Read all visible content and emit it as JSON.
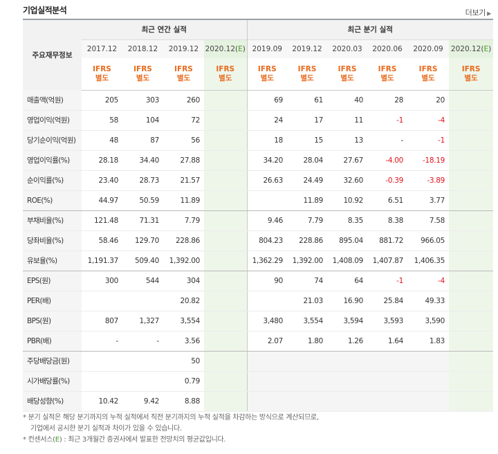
{
  "section_title": "기업실적분석",
  "more_label": "더보기",
  "header": {
    "row_label": "주요재무정보",
    "annual_group": "최근 연간 실적",
    "quarter_group": "최근 분기 실적",
    "annual_periods": [
      "2017.12",
      "2018.12",
      "2019.12",
      "2020.12(E)"
    ],
    "quarter_periods": [
      "2019.09",
      "2019.12",
      "2020.03",
      "2020.06",
      "2020.09",
      "2020.12(E)"
    ],
    "ifrs_top": "IFRS",
    "ifrs_bottom": "별도"
  },
  "rows": [
    {
      "label": "매출액(억원)",
      "annual": [
        "205",
        "303",
        "260",
        ""
      ],
      "quarter": [
        "69",
        "61",
        "40",
        "28",
        "20",
        ""
      ]
    },
    {
      "label": "영업이익(억원)",
      "annual": [
        "58",
        "104",
        "72",
        ""
      ],
      "quarter": [
        "24",
        "17",
        "11",
        "-1",
        "-4",
        ""
      ]
    },
    {
      "label": "당기순이익(억원)",
      "annual": [
        "48",
        "87",
        "56",
        ""
      ],
      "quarter": [
        "18",
        "15",
        "13",
        "-",
        "-1",
        ""
      ]
    },
    {
      "label": "영업이익률(%)",
      "annual": [
        "28.18",
        "34.40",
        "27.88",
        ""
      ],
      "quarter": [
        "34.20",
        "28.04",
        "27.67",
        "-4.00",
        "-18.19",
        ""
      ]
    },
    {
      "label": "순이익률(%)",
      "annual": [
        "23.40",
        "28.73",
        "21.57",
        ""
      ],
      "quarter": [
        "26.63",
        "24.49",
        "32.60",
        "-0.39",
        "-3.89",
        ""
      ]
    },
    {
      "label": "ROE(%)",
      "annual": [
        "44.97",
        "50.59",
        "11.89",
        ""
      ],
      "quarter": [
        "",
        "11.89",
        "10.92",
        "6.51",
        "3.77",
        ""
      ]
    },
    {
      "label": "부채비율(%)",
      "annual": [
        "121.48",
        "71.31",
        "7.79",
        ""
      ],
      "quarter": [
        "9.46",
        "7.79",
        "8.35",
        "8.38",
        "7.58",
        ""
      ]
    },
    {
      "label": "당좌비율(%)",
      "annual": [
        "58.46",
        "129.70",
        "228.86",
        ""
      ],
      "quarter": [
        "804.23",
        "228.86",
        "895.04",
        "881.72",
        "966.05",
        ""
      ]
    },
    {
      "label": "유보율(%)",
      "annual": [
        "1,191.37",
        "509.40",
        "1,392.00",
        ""
      ],
      "quarter": [
        "1,362.29",
        "1,392.00",
        "1,408.09",
        "1,407.87",
        "1,406.35",
        ""
      ]
    },
    {
      "label": "EPS(원)",
      "annual": [
        "300",
        "544",
        "304",
        ""
      ],
      "quarter": [
        "90",
        "74",
        "64",
        "-1",
        "-4",
        ""
      ]
    },
    {
      "label": "PER(배)",
      "annual": [
        "",
        "",
        "20.82",
        ""
      ],
      "quarter": [
        "",
        "21.03",
        "16.90",
        "25.84",
        "49.33",
        ""
      ]
    },
    {
      "label": "BPS(원)",
      "annual": [
        "807",
        "1,327",
        "3,554",
        ""
      ],
      "quarter": [
        "3,480",
        "3,554",
        "3,594",
        "3,593",
        "3,590",
        ""
      ]
    },
    {
      "label": "PBR(배)",
      "annual": [
        "-",
        "-",
        "3.56",
        ""
      ],
      "quarter": [
        "2.07",
        "1.80",
        "1.26",
        "1.64",
        "1.83",
        ""
      ]
    },
    {
      "label": "주당배당금(원)",
      "annual": [
        "",
        "",
        "50",
        ""
      ],
      "quarter": [
        "",
        "",
        "",
        "",
        "",
        ""
      ]
    },
    {
      "label": "시가배당률(%)",
      "annual": [
        "",
        "",
        "0.79",
        ""
      ],
      "quarter": [
        "",
        "",
        "",
        "",
        "",
        ""
      ]
    },
    {
      "label": "배당성향(%)",
      "annual": [
        "10.42",
        "9.42",
        "8.88",
        ""
      ],
      "quarter": [
        "",
        "",
        "",
        "",
        "",
        ""
      ]
    }
  ],
  "notes": {
    "line1": "* 분기 실적은 해당 분기까지의 누적 실적에서 직전 분기까지의 누적 실적을 차감하는 방식으로 계산되므로,",
    "line2": "기업에서 공시한 분기 실적과 차이가 있을 수 있습니다.",
    "line3_a": "* 컨센서스(",
    "line3_e": "E",
    "line3_b": ") : 최근 3개월간 증권사에서 발표한 전망치의 평균값입니다."
  },
  "colors": {
    "ifrs": "#e86a1c",
    "negative": "#e0131b",
    "estimate_bg": "#eef6ea",
    "estimate_text": "#3f9d1f"
  }
}
